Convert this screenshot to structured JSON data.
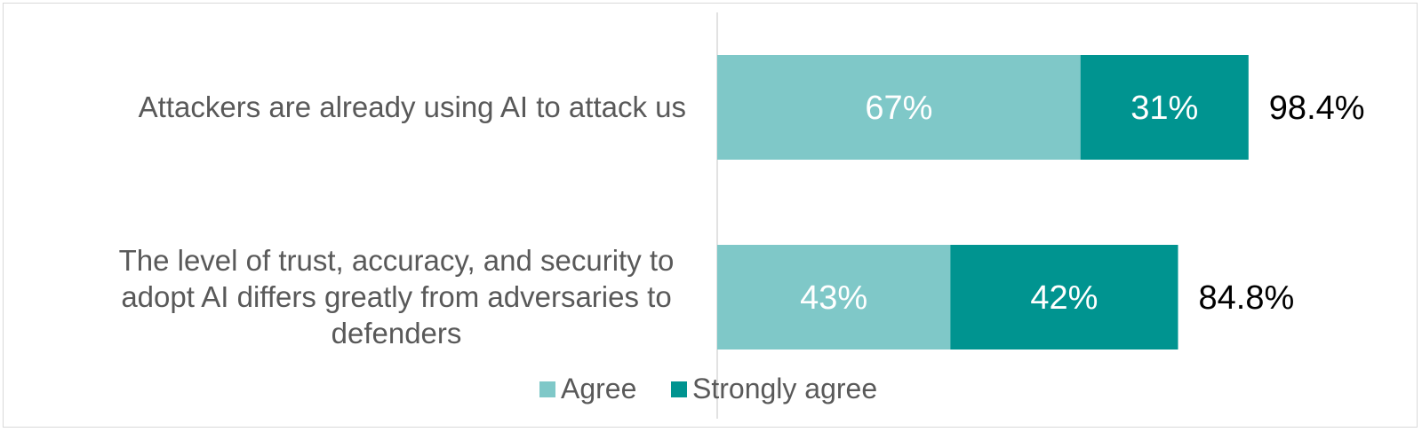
{
  "chart_data": {
    "type": "bar",
    "orientation": "horizontal",
    "stacked": true,
    "categories": [
      "Attackers are already using AI to attack us",
      "The level of trust, accuracy, and security to adopt AI differs greatly from adversaries to defenders"
    ],
    "category_lines": [
      [
        "Attackers are already using AI to attack us"
      ],
      [
        "The level of trust, accuracy, and security to",
        "adopt AI differs greatly from adversaries to",
        "defenders"
      ]
    ],
    "series": [
      {
        "name": "Agree",
        "values": [
          67,
          43
        ],
        "labels": [
          "67%",
          "43%"
        ],
        "color": "#7fc8c8"
      },
      {
        "name": "Strongly agree",
        "values": [
          31,
          42
        ],
        "labels": [
          "31%",
          "42%"
        ],
        "color": "#009490"
      }
    ],
    "totals": [
      "98.4%",
      "84.8%"
    ],
    "total_values": [
      98.4,
      84.8
    ],
    "xlim": [
      0,
      100
    ],
    "legend_position": "bottom",
    "grid": false
  }
}
